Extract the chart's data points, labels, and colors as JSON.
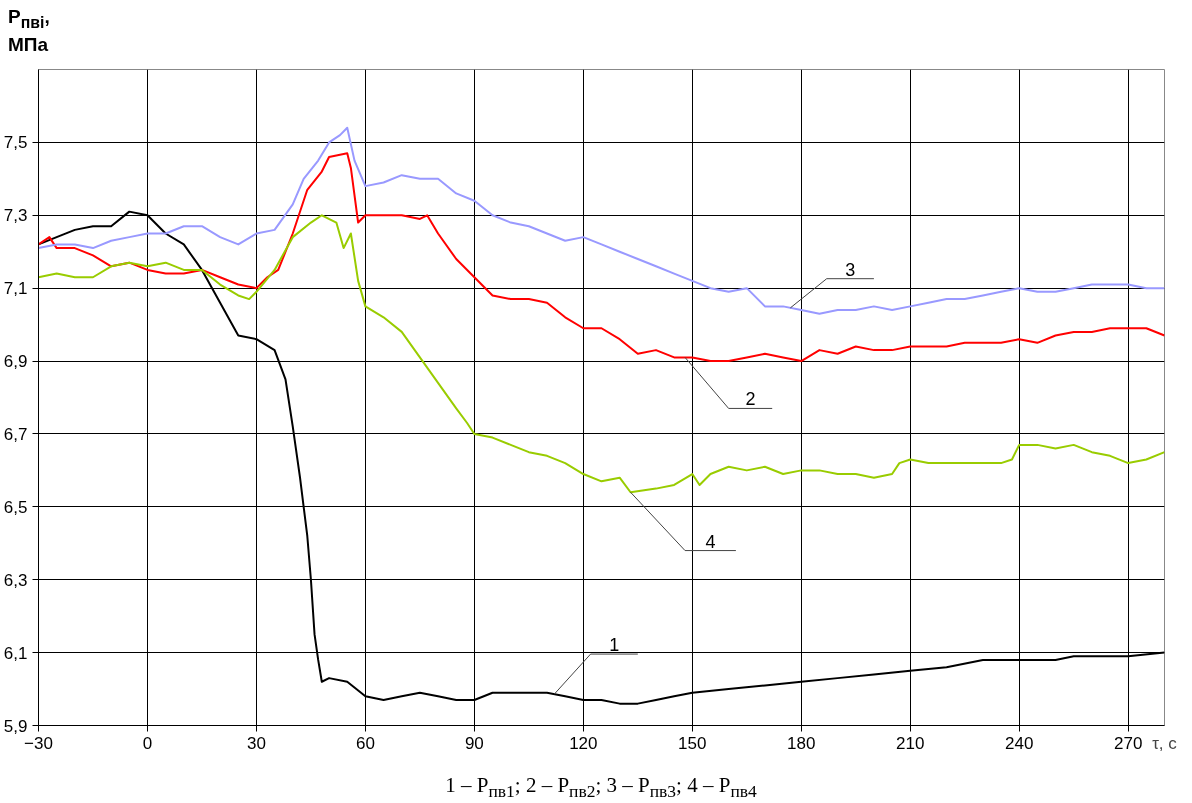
{
  "chart_data": {
    "type": "line",
    "ylabel": "P$_{пві}$, МПа",
    "xlabel": "τ, с",
    "annotations": [
      "1 – P$_{пв1}$; 2 – P$_{пв2}$; 3 – P$_{пв3}$; 4 – P$_{пв4}$"
    ],
    "xlim": [
      -30,
      280
    ],
    "ylim": [
      5.9,
      7.7
    ],
    "xticks": [
      -30,
      0,
      30,
      60,
      90,
      120,
      150,
      180,
      210,
      240,
      270
    ],
    "yticks": [
      {
        "value": 5.9,
        "label": "5,9"
      },
      {
        "value": 6.1,
        "label": "6,1"
      },
      {
        "value": 6.3,
        "label": "6,3"
      },
      {
        "value": 6.5,
        "label": "6,5"
      },
      {
        "value": 6.7,
        "label": "6,7"
      },
      {
        "value": 6.9,
        "label": "6,9"
      },
      {
        "value": 7.1,
        "label": "7,1"
      },
      {
        "value": 7.3,
        "label": "7,3"
      },
      {
        "value": 7.5,
        "label": "7,5"
      }
    ],
    "grid": true,
    "marker": "none",
    "line_style": "solid",
    "series": [
      {
        "name": "1",
        "color": "#000000",
        "x": [
          -30,
          -25,
          -20,
          -15,
          -10,
          -5,
          0,
          5,
          10,
          15,
          20,
          25,
          30,
          35,
          38,
          40,
          42,
          44,
          45,
          46,
          47,
          48,
          50,
          55,
          60,
          65,
          70,
          75,
          80,
          85,
          90,
          95,
          100,
          110,
          115,
          120,
          125,
          130,
          135,
          140,
          145,
          150,
          160,
          170,
          180,
          190,
          200,
          210,
          220,
          230,
          240,
          250,
          255,
          270,
          280
        ],
        "values": [
          7.22,
          7.24,
          7.26,
          7.27,
          7.27,
          7.31,
          7.3,
          7.25,
          7.22,
          7.15,
          7.06,
          6.97,
          6.96,
          6.93,
          6.85,
          6.72,
          6.58,
          6.42,
          6.3,
          6.15,
          6.08,
          6.02,
          6.03,
          6.02,
          5.98,
          5.97,
          5.98,
          5.99,
          5.98,
          5.97,
          5.97,
          5.99,
          5.99,
          5.99,
          5.98,
          5.97,
          5.97,
          5.96,
          5.96,
          5.97,
          5.98,
          5.99,
          6.0,
          6.01,
          6.02,
          6.03,
          6.04,
          6.05,
          6.06,
          6.08,
          6.08,
          6.08,
          6.09,
          6.09,
          6.1
        ]
      },
      {
        "name": "2",
        "color": "#ff0000",
        "x": [
          -30,
          -27,
          -25,
          -20,
          -15,
          -10,
          -5,
          0,
          5,
          10,
          15,
          20,
          25,
          30,
          33,
          36,
          40,
          44,
          48,
          50,
          55,
          56,
          58,
          60,
          65,
          70,
          75,
          77,
          80,
          85,
          90,
          95,
          100,
          105,
          110,
          115,
          120,
          125,
          130,
          135,
          140,
          145,
          150,
          155,
          160,
          165,
          170,
          175,
          180,
          185,
          190,
          195,
          200,
          205,
          210,
          215,
          220,
          225,
          230,
          235,
          240,
          245,
          250,
          255,
          260,
          265,
          270,
          275,
          280
        ],
        "values": [
          7.22,
          7.24,
          7.21,
          7.21,
          7.19,
          7.16,
          7.17,
          7.15,
          7.14,
          7.14,
          7.15,
          7.13,
          7.11,
          7.1,
          7.13,
          7.15,
          7.25,
          7.37,
          7.42,
          7.46,
          7.47,
          7.43,
          7.28,
          7.3,
          7.3,
          7.3,
          7.29,
          7.3,
          7.25,
          7.18,
          7.13,
          7.08,
          7.07,
          7.07,
          7.06,
          7.02,
          6.99,
          6.99,
          6.96,
          6.92,
          6.93,
          6.91,
          6.91,
          6.9,
          6.9,
          6.91,
          6.92,
          6.91,
          6.9,
          6.93,
          6.92,
          6.94,
          6.93,
          6.93,
          6.94,
          6.94,
          6.94,
          6.95,
          6.95,
          6.95,
          6.96,
          6.95,
          6.97,
          6.98,
          6.98,
          6.99,
          6.99,
          6.99,
          6.97
        ]
      },
      {
        "name": "3",
        "color": "#9999ff",
        "x": [
          -30,
          -25,
          -20,
          -15,
          -10,
          -5,
          0,
          5,
          10,
          15,
          20,
          25,
          30,
          35,
          40,
          43,
          47,
          50,
          53,
          55,
          57,
          60,
          65,
          70,
          75,
          80,
          85,
          90,
          95,
          100,
          105,
          110,
          115,
          120,
          125,
          130,
          135,
          140,
          145,
          150,
          155,
          160,
          165,
          170,
          175,
          180,
          185,
          190,
          195,
          200,
          205,
          210,
          215,
          220,
          225,
          230,
          235,
          240,
          245,
          250,
          255,
          260,
          265,
          270,
          275,
          280
        ],
        "values": [
          7.21,
          7.22,
          7.22,
          7.21,
          7.23,
          7.24,
          7.25,
          7.25,
          7.27,
          7.27,
          7.24,
          7.22,
          7.25,
          7.26,
          7.33,
          7.4,
          7.45,
          7.5,
          7.52,
          7.54,
          7.45,
          7.38,
          7.39,
          7.41,
          7.4,
          7.4,
          7.36,
          7.34,
          7.3,
          7.28,
          7.27,
          7.25,
          7.23,
          7.24,
          7.22,
          7.2,
          7.18,
          7.16,
          7.14,
          7.12,
          7.1,
          7.09,
          7.1,
          7.05,
          7.05,
          7.04,
          7.03,
          7.04,
          7.04,
          7.05,
          7.04,
          7.05,
          7.06,
          7.07,
          7.07,
          7.08,
          7.09,
          7.1,
          7.09,
          7.09,
          7.1,
          7.11,
          7.11,
          7.11,
          7.1,
          7.1
        ]
      },
      {
        "name": "4",
        "color": "#99cc00",
        "x": [
          -30,
          -25,
          -20,
          -15,
          -10,
          -5,
          0,
          5,
          10,
          15,
          20,
          25,
          28,
          30,
          35,
          40,
          45,
          48,
          52,
          54,
          56,
          58,
          60,
          65,
          70,
          75,
          80,
          85,
          88,
          90,
          95,
          100,
          105,
          110,
          115,
          120,
          125,
          130,
          133,
          140,
          145,
          150,
          152,
          155,
          160,
          165,
          170,
          175,
          180,
          185,
          190,
          195,
          200,
          205,
          207,
          210,
          215,
          220,
          225,
          230,
          235,
          238,
          240,
          245,
          250,
          255,
          260,
          265,
          270,
          275,
          280
        ],
        "values": [
          7.13,
          7.14,
          7.13,
          7.13,
          7.16,
          7.17,
          7.16,
          7.17,
          7.15,
          7.15,
          7.11,
          7.08,
          7.07,
          7.09,
          7.15,
          7.24,
          7.28,
          7.3,
          7.28,
          7.21,
          7.25,
          7.12,
          7.05,
          7.02,
          6.98,
          6.91,
          6.84,
          6.77,
          6.73,
          6.7,
          6.69,
          6.67,
          6.65,
          6.64,
          6.62,
          6.59,
          6.57,
          6.58,
          6.54,
          6.55,
          6.56,
          6.59,
          6.56,
          6.59,
          6.61,
          6.6,
          6.61,
          6.59,
          6.6,
          6.6,
          6.59,
          6.59,
          6.58,
          6.59,
          6.62,
          6.63,
          6.62,
          6.62,
          6.62,
          6.62,
          6.62,
          6.63,
          6.67,
          6.67,
          6.66,
          6.67,
          6.65,
          6.64,
          6.62,
          6.63,
          6.65
        ]
      }
    ]
  }
}
